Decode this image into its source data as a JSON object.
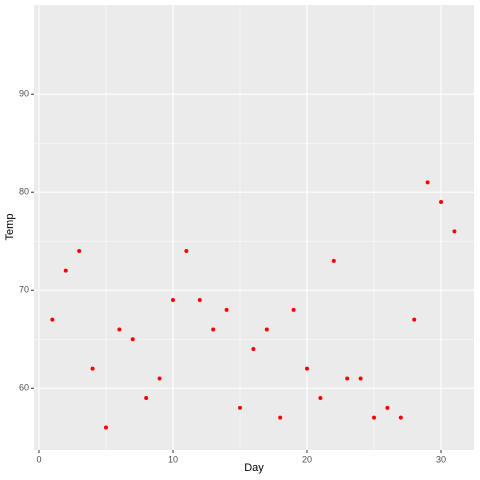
{
  "chart_data": {
    "type": "scatter",
    "x_label": "Day",
    "y_label": "Temp",
    "x": [
      1,
      2,
      3,
      4,
      5,
      6,
      7,
      8,
      9,
      10,
      11,
      12,
      13,
      14,
      15,
      16,
      17,
      18,
      19,
      20,
      21,
      22,
      23,
      24,
      25,
      26,
      27,
      28,
      29,
      30,
      31
    ],
    "series": [
      {
        "color": "#ff0000",
        "values": [
          67,
          72,
          74,
          62,
          56,
          66,
          65,
          59,
          61,
          69,
          74,
          69,
          66,
          68,
          58,
          64,
          66,
          57,
          68,
          62,
          59,
          73,
          61,
          61,
          57,
          58,
          57,
          67,
          81,
          79,
          76
        ]
      }
    ],
    "xlim": [
      -0.37,
      32.46
    ],
    "xticks": [
      0,
      10,
      20,
      30
    ],
    "ylim": [
      53.7,
      99.1
    ],
    "yticks": [
      60,
      70,
      80,
      90
    ],
    "grid": true,
    "minor_grid": true,
    "panel_color": "#ebebeb"
  }
}
